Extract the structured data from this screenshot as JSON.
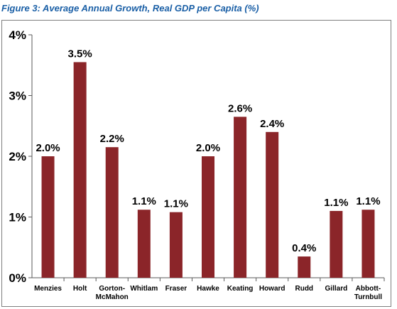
{
  "figure_title": "Figure 3: Average Annual Growth, Real GDP per Capita (%)",
  "colors": {
    "bar": "#8b2529",
    "title": "#1a5fa6",
    "axis": "#595959",
    "frame": "#7f7f7f"
  },
  "chart_data": {
    "type": "bar",
    "title": "",
    "xlabel": "",
    "ylabel": "",
    "categories": [
      "Menzies",
      "Holt",
      "Gorton-McMahon",
      "Whitlam",
      "Fraser",
      "Hawke",
      "Keating",
      "Howard",
      "Rudd",
      "Gillard",
      "Abbott-Turnbull"
    ],
    "category_lines": [
      [
        "Menzies"
      ],
      [
        "Holt"
      ],
      [
        "Gorton-",
        "McMahon"
      ],
      [
        "Whitlam"
      ],
      [
        "Fraser"
      ],
      [
        "Hawke"
      ],
      [
        "Keating"
      ],
      [
        "Howard"
      ],
      [
        "Rudd"
      ],
      [
        "Gillard"
      ],
      [
        "Abbott-",
        "Turnbull"
      ]
    ],
    "values": [
      2.0,
      3.55,
      2.15,
      1.12,
      1.08,
      2.0,
      2.65,
      2.4,
      0.35,
      1.1,
      1.12
    ],
    "data_labels": [
      "2.0%",
      "3.5%",
      "2.2%",
      "1.1%",
      "1.1%",
      "2.0%",
      "2.6%",
      "2.4%",
      "0.4%",
      "1.1%",
      "1.1%"
    ],
    "ylim": [
      0,
      4
    ],
    "yticks": [
      0,
      1,
      2,
      3,
      4
    ],
    "ytick_labels": [
      "0%",
      "1%",
      "2%",
      "3%",
      "4%"
    ],
    "grid": false,
    "legend": "none"
  }
}
